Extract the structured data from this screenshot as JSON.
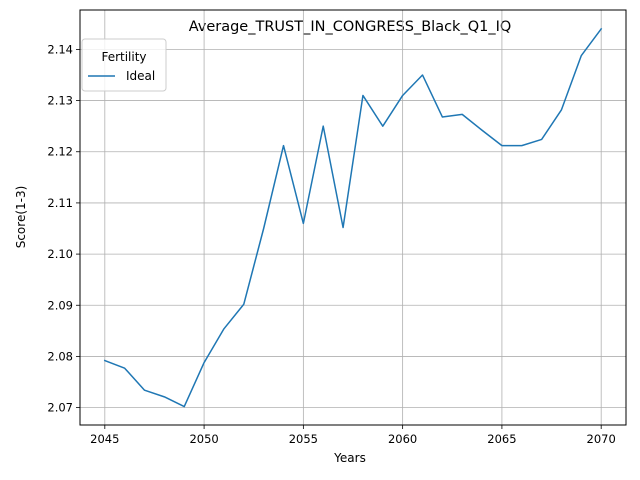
{
  "chart_data": {
    "type": "line",
    "title": "Average_TRUST_IN_CONGRESS_Black_Q1_IQ",
    "xlabel": "Years",
    "ylabel": "Score(1-3)",
    "xlim": [
      2043.75,
      2071.25
    ],
    "ylim": [
      2.0666,
      2.1477
    ],
    "x_ticks": [
      2045,
      2050,
      2055,
      2060,
      2065,
      2070
    ],
    "y_ticks": [
      2.07,
      2.08,
      2.09,
      2.1,
      2.11,
      2.12,
      2.13,
      2.14
    ],
    "grid": true,
    "legend": {
      "title": "Fertility",
      "placement": "top-left"
    },
    "series": [
      {
        "name": "Ideal",
        "color": "#1f77b4",
        "x": [
          2045,
          2046,
          2047,
          2048,
          2049,
          2050,
          2051,
          2052,
          2053,
          2054,
          2055,
          2056,
          2057,
          2058,
          2059,
          2060,
          2061,
          2062,
          2063,
          2064,
          2065,
          2066,
          2067,
          2068,
          2069,
          2070
        ],
        "y": [
          2.0792,
          2.0777,
          2.0734,
          2.0721,
          2.0702,
          2.0788,
          2.0854,
          2.0902,
          2.105,
          2.1212,
          2.106,
          2.125,
          2.1052,
          2.131,
          2.125,
          2.131,
          2.135,
          2.1268,
          2.1273,
          2.1242,
          2.1212,
          2.1212,
          2.1224,
          2.1282,
          2.1388,
          2.144
        ]
      }
    ]
  }
}
